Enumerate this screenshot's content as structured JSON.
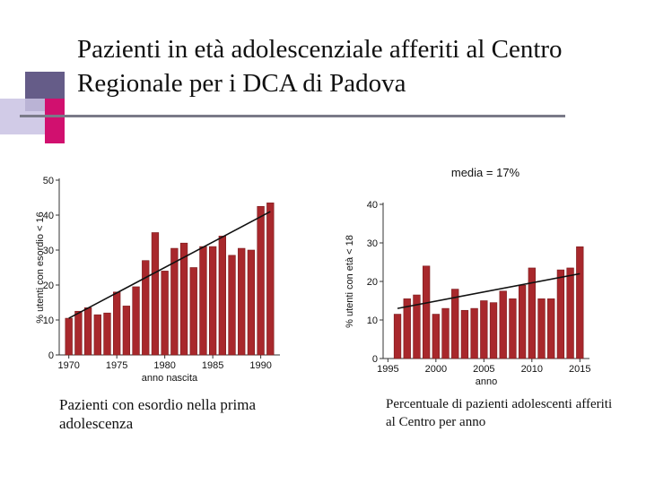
{
  "slide": {
    "title": "Pazienti in età adolescenziale afferiti al Centro Regionale per i DCA di Padova",
    "caption_left": "Pazienti con esordio nella prima adolescenza",
    "caption_right": "Percentuale di pazienti adolescenti afferiti al Centro per anno"
  },
  "colors": {
    "bar": "#a8282c",
    "bar_edge": "#7a1a1c",
    "trend": "#111111",
    "accent_purple": "#4a3f73",
    "accent_magenta": "#d1106f"
  },
  "chart_data": [
    {
      "type": "bar",
      "title": "",
      "xlabel": "anno nascita",
      "ylabel": "% utenti con esordio < 16",
      "x": [
        1970,
        1971,
        1972,
        1973,
        1974,
        1975,
        1976,
        1977,
        1978,
        1979,
        1980,
        1981,
        1982,
        1983,
        1984,
        1985,
        1986,
        1987,
        1988,
        1989,
        1990,
        1991
      ],
      "values": [
        10.5,
        12.5,
        13.5,
        11.5,
        12,
        18,
        14,
        19.5,
        27,
        35,
        24,
        30.5,
        32,
        25,
        31,
        31,
        34,
        28.5,
        30.5,
        30,
        42.5,
        43.5
      ],
      "xlim": [
        1969,
        1992
      ],
      "ylim": [
        0,
        50
      ],
      "x_ticks": [
        1970,
        1975,
        1980,
        1985,
        1990
      ],
      "y_ticks": [
        0,
        10,
        20,
        30,
        40,
        50
      ],
      "trend_line": {
        "x": [
          1970,
          1991
        ],
        "y": [
          10.5,
          41
        ]
      },
      "annotation": ""
    },
    {
      "type": "bar",
      "title": "",
      "xlabel": "anno",
      "ylabel": "% utenti con età < 18",
      "x": [
        1996,
        1997,
        1998,
        1999,
        2000,
        2001,
        2002,
        2003,
        2004,
        2005,
        2006,
        2007,
        2008,
        2009,
        2010,
        2011,
        2012,
        2013,
        2014,
        2015
      ],
      "values": [
        11.5,
        15.5,
        16.5,
        24,
        11.5,
        13,
        18,
        12.5,
        13,
        15,
        14.5,
        17.5,
        15.5,
        19,
        23.5,
        15.5,
        15.5,
        23,
        23.5,
        29
      ],
      "xlim": [
        1994.5,
        2016
      ],
      "ylim": [
        0,
        40
      ],
      "x_ticks": [
        1995,
        2000,
        2005,
        2010,
        2015
      ],
      "y_ticks": [
        0,
        10,
        20,
        30,
        40
      ],
      "trend_line": {
        "x": [
          1996,
          2015
        ],
        "y": [
          13,
          22
        ]
      },
      "annotation": "media = 17%"
    }
  ]
}
